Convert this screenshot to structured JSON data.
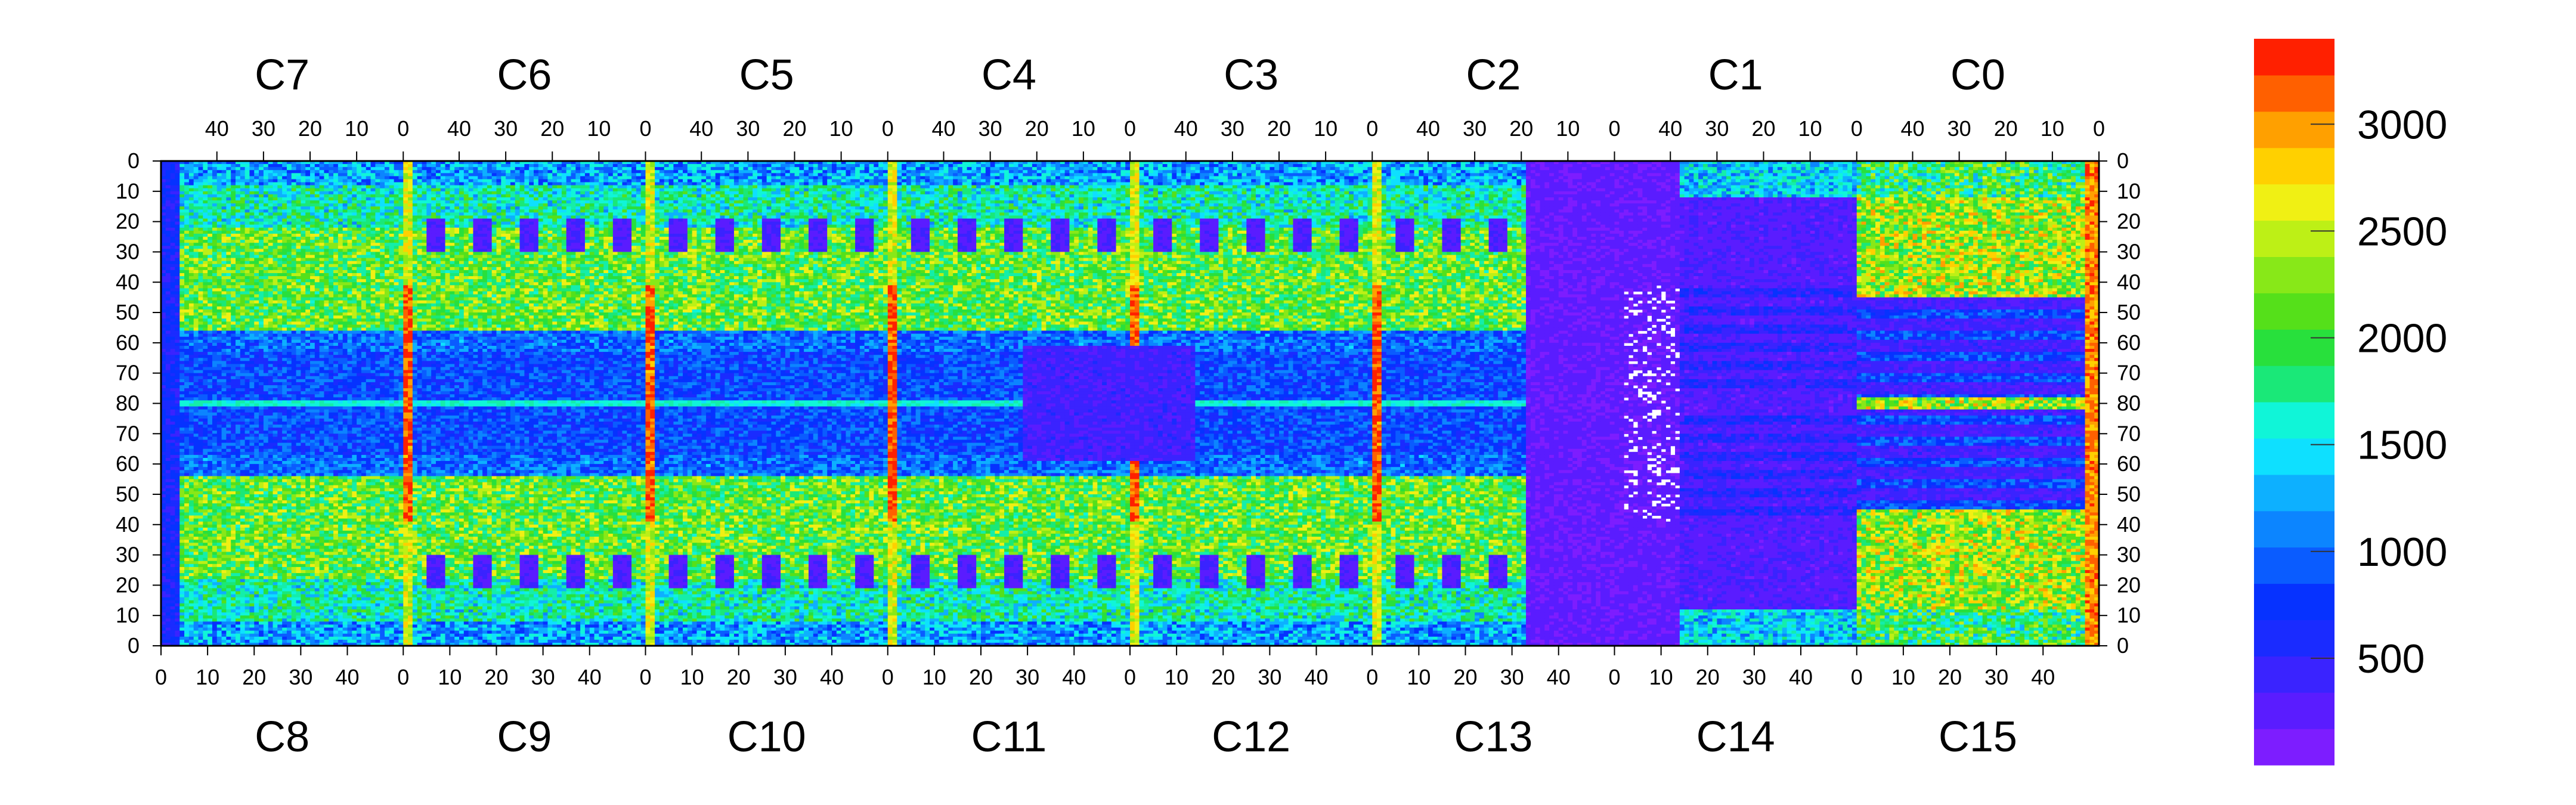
{
  "chart_data": {
    "type": "heatmap",
    "title": "",
    "xlabel": "",
    "ylabel": "",
    "chips_top": [
      "C7",
      "C6",
      "C5",
      "C4",
      "C3",
      "C2",
      "C1",
      "C0"
    ],
    "chips_bottom": [
      "C8",
      "C9",
      "C10",
      "C11",
      "C12",
      "C13",
      "C14",
      "C15"
    ],
    "x_ticks_top": [
      "40",
      "30",
      "20",
      "10",
      "0"
    ],
    "x_ticks_bottom": [
      "0",
      "10",
      "20",
      "30",
      "40"
    ],
    "y_ticks": [
      "0",
      "10",
      "20",
      "30",
      "40",
      "50",
      "60",
      "70",
      "80",
      "70",
      "60",
      "50",
      "40",
      "30",
      "20",
      "10",
      "0"
    ],
    "columns_per_chip": 52,
    "rows_per_half": 80,
    "zlim": [
      0,
      3400
    ],
    "colorbar": {
      "ticks": [
        500,
        1000,
        1500,
        2000,
        2500,
        3000
      ],
      "tick_labels": [
        "500",
        "1000",
        "1500",
        "2000",
        "2500",
        "3000"
      ],
      "levels": 20
    },
    "palette": [
      "#7d1dff",
      "#5a1cff",
      "#3a23ff",
      "#1a2bff",
      "#0632ff",
      "#0a5cff",
      "#0c85ff",
      "#0db0ff",
      "#0ee0ff",
      "#10f5d8",
      "#14eeaa",
      "#1ae878",
      "#28e03c",
      "#55e01a",
      "#88e818",
      "#bdf016",
      "#f0f014",
      "#ffd000",
      "#ffa000",
      "#ff6000",
      "#ff2000"
    ],
    "features": {
      "hot_stripes": "chip boundary columns, values ~3000+",
      "dead_region": "chips C13-C14 center, values ~0-400 with empty pixels",
      "high_band": "rows 40-60 of each half, values ~1800-2600"
    }
  }
}
